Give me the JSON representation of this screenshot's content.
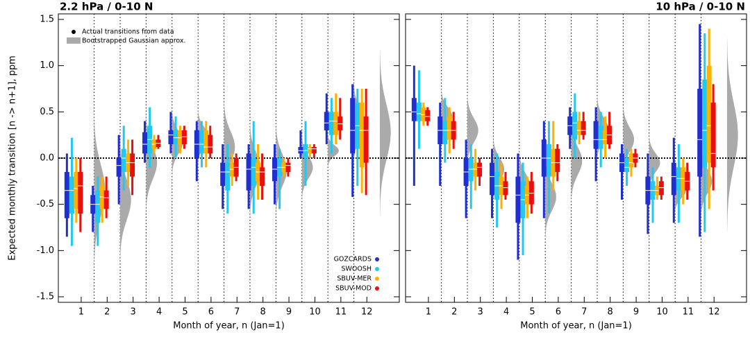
{
  "chart_data": [
    {
      "type": "box",
      "title": "2.2 hPa / 0-10 N",
      "xlabel": "Month of year, n (Jan=1)",
      "ylabel": "Expected monthly transition [n -> n+1], ppm",
      "x": [
        1,
        2,
        3,
        4,
        5,
        6,
        7,
        8,
        9,
        10,
        11,
        12
      ],
      "xlim": [
        0.12,
        13.25
      ],
      "xticks": [
        1,
        2,
        3,
        4,
        5,
        6,
        7,
        8,
        9,
        10,
        11,
        12
      ],
      "ylim": [
        -1.56,
        1.56
      ],
      "yticks": [
        {
          "value": -1.5,
          "label": "-1.5"
        },
        {
          "value": -1,
          "label": "-1.0"
        },
        -0.5,
        {
          "value": 0,
          "label": "0.0"
        },
        0.5,
        {
          "value": 1,
          "label": "1.0"
        },
        1.5
      ],
      "ytick_labels": true,
      "zero_line": true,
      "legend_notes": [
        "Actual transitions from data",
        "Bootstrapped Gaussian approx."
      ],
      "gaussian": {
        "color": "#aaaaaa",
        "mean": [
          -0.35,
          -0.45,
          -0.05,
          0.17,
          0.23,
          0.12,
          -0.12,
          -0.13,
          -0.1,
          0.08,
          0.38,
          0.28
        ],
        "sd": [
          0.28,
          0.22,
          0.18,
          0.12,
          0.1,
          0.17,
          0.17,
          0.17,
          0.12,
          0.06,
          0.15,
          0.3
        ]
      },
      "series": [
        {
          "name": "GOZCARDS",
          "color": "#1f2fd0",
          "low": [
            -0.85,
            -0.8,
            -0.5,
            -0.05,
            0.05,
            -0.25,
            -0.55,
            -0.55,
            -0.5,
            0.0,
            0.15,
            -0.42
          ],
          "q1": [
            -0.65,
            -0.6,
            -0.2,
            0.05,
            0.15,
            0.0,
            -0.3,
            -0.35,
            -0.25,
            0.05,
            0.3,
            0.05
          ],
          "median": [
            -0.35,
            -0.5,
            -0.08,
            0.15,
            0.25,
            0.15,
            -0.15,
            -0.12,
            -0.12,
            0.08,
            0.38,
            0.3
          ],
          "q3": [
            -0.15,
            -0.4,
            0.0,
            0.28,
            0.3,
            0.3,
            -0.05,
            0.05,
            0.0,
            0.12,
            0.5,
            0.65
          ],
          "high": [
            0.05,
            -0.3,
            0.25,
            0.4,
            0.5,
            0.4,
            0.15,
            0.15,
            0.15,
            0.3,
            0.7,
            0.8
          ]
        },
        {
          "name": "SWOOSH",
          "color": "#22c8f0",
          "low": [
            -0.95,
            -0.95,
            -0.35,
            -0.1,
            0.0,
            -0.1,
            -0.6,
            -0.6,
            -0.55,
            -0.3,
            0.05,
            -0.3
          ],
          "q1": [
            -0.6,
            -0.7,
            -0.15,
            0.05,
            0.15,
            0.05,
            -0.35,
            -0.3,
            -0.2,
            0.0,
            0.25,
            0.1
          ],
          "median": [
            -0.35,
            -0.5,
            0.0,
            0.2,
            0.22,
            0.15,
            -0.15,
            -0.1,
            -0.1,
            0.08,
            0.4,
            0.35
          ],
          "q3": [
            -0.2,
            -0.35,
            0.1,
            0.35,
            0.3,
            0.3,
            -0.05,
            0.0,
            0.0,
            0.15,
            0.5,
            0.6
          ],
          "high": [
            0.22,
            -0.2,
            0.35,
            0.55,
            0.45,
            0.4,
            0.15,
            0.4,
            0.1,
            0.4,
            0.65,
            0.75
          ]
        },
        {
          "name": "SBUV-MER",
          "color": "#ffb000",
          "low": [
            -0.7,
            -0.7,
            -0.3,
            0.05,
            0.05,
            -0.1,
            -0.3,
            -0.45,
            -0.2,
            0.0,
            0.15,
            -0.38
          ],
          "q1": [
            -0.55,
            -0.55,
            -0.15,
            0.1,
            0.15,
            0.05,
            -0.2,
            -0.25,
            -0.15,
            0.05,
            0.25,
            -0.1
          ],
          "median": [
            -0.33,
            -0.42,
            -0.05,
            0.15,
            0.22,
            0.12,
            -0.12,
            -0.15,
            -0.1,
            0.1,
            0.4,
            0.3
          ],
          "q3": [
            -0.15,
            -0.3,
            0.05,
            0.2,
            0.3,
            0.3,
            -0.05,
            -0.05,
            -0.05,
            0.12,
            0.5,
            0.6
          ],
          "high": [
            0.0,
            -0.2,
            0.2,
            0.25,
            0.35,
            0.4,
            0.05,
            0.15,
            0.0,
            0.15,
            0.7,
            0.75
          ]
        },
        {
          "name": "SBUV-MOD",
          "color": "#e8100c",
          "low": [
            -0.8,
            -0.65,
            -0.4,
            0.1,
            0.1,
            0.0,
            -0.25,
            -0.45,
            -0.2,
            0.0,
            0.2,
            -0.4
          ],
          "q1": [
            -0.6,
            -0.55,
            -0.2,
            0.12,
            0.15,
            0.05,
            -0.2,
            -0.3,
            -0.15,
            0.05,
            0.3,
            -0.05
          ],
          "median": [
            -0.3,
            -0.43,
            -0.05,
            0.16,
            0.23,
            0.12,
            -0.1,
            -0.15,
            -0.08,
            0.1,
            0.37,
            0.3
          ],
          "q3": [
            -0.15,
            -0.35,
            0.05,
            0.2,
            0.3,
            0.25,
            0.0,
            -0.1,
            -0.05,
            0.12,
            0.45,
            0.45
          ],
          "high": [
            0.0,
            -0.2,
            0.2,
            0.25,
            0.35,
            0.35,
            0.05,
            0.05,
            0.0,
            0.15,
            0.65,
            0.75
          ]
        }
      ]
    },
    {
      "type": "box",
      "title": "10 hPa / 0-10 N",
      "xlabel": "Month of year, n (Jan=1)",
      "x": [
        1,
        2,
        3,
        4,
        5,
        6,
        7,
        8,
        9,
        10,
        11,
        12
      ],
      "xlim": [
        0.12,
        13.25
      ],
      "xticks": [
        1,
        2,
        3,
        4,
        5,
        6,
        7,
        8,
        9,
        10,
        11,
        12
      ],
      "ylim": [
        -1.56,
        1.56
      ],
      "yticks": [
        -1.5,
        -1,
        -0.5,
        0,
        0.5,
        1,
        1.5
      ],
      "ytick_labels": false,
      "zero_line": true,
      "gaussian": {
        "color": "#aaaaaa",
        "mean": [
          0.45,
          0.3,
          -0.12,
          -0.3,
          -0.42,
          -0.03,
          0.32,
          0.2,
          -0.05,
          -0.35,
          -0.25,
          0.25
        ],
        "sd": [
          0.1,
          0.13,
          0.12,
          0.13,
          0.15,
          0.15,
          0.12,
          0.13,
          0.1,
          0.08,
          0.13,
          0.35
        ]
      },
      "series": [
        {
          "name": "GOZCARDS",
          "color": "#1f2fd0",
          "low": [
            -0.3,
            -0.3,
            -0.65,
            -0.65,
            -1.1,
            -0.65,
            0.1,
            -0.25,
            -0.45,
            -0.82,
            -0.7,
            -0.85
          ],
          "q1": [
            0.4,
            0.15,
            -0.3,
            -0.4,
            -0.7,
            -0.2,
            0.25,
            0.1,
            -0.15,
            -0.5,
            -0.4,
            -0.2
          ],
          "median": [
            0.5,
            0.3,
            -0.15,
            -0.2,
            -0.4,
            0.0,
            0.35,
            0.2,
            -0.05,
            -0.35,
            -0.2,
            0.2
          ],
          "q3": [
            0.65,
            0.45,
            0.0,
            -0.05,
            -0.2,
            0.2,
            0.45,
            0.4,
            0.05,
            -0.2,
            -0.05,
            0.75
          ],
          "high": [
            1.0,
            0.6,
            0.2,
            0.1,
            0.05,
            0.4,
            0.55,
            0.55,
            0.15,
            0.05,
            0.22,
            1.45
          ]
        },
        {
          "name": "SWOOSH",
          "color": "#22c8f0",
          "low": [
            0.1,
            -0.05,
            -0.55,
            -0.75,
            -1.05,
            -0.6,
            0.0,
            -0.1,
            -0.3,
            -0.7,
            -0.7,
            -0.8
          ],
          "q1": [
            0.4,
            0.15,
            -0.25,
            -0.45,
            -0.65,
            -0.2,
            0.2,
            0.1,
            -0.15,
            -0.45,
            -0.35,
            -0.1
          ],
          "median": [
            0.48,
            0.3,
            -0.12,
            -0.3,
            -0.45,
            0.0,
            0.38,
            0.2,
            -0.1,
            -0.35,
            -0.22,
            0.3
          ],
          "q3": [
            0.6,
            0.4,
            0.0,
            -0.15,
            -0.25,
            0.15,
            0.5,
            0.35,
            0.0,
            -0.25,
            -0.1,
            0.85
          ],
          "high": [
            0.95,
            0.65,
            0.15,
            0.05,
            -0.05,
            0.4,
            0.7,
            0.5,
            0.1,
            -0.1,
            0.15,
            1.35
          ]
        },
        {
          "name": "SBUV-MER",
          "color": "#ffb000",
          "low": [
            0.35,
            0.05,
            -0.35,
            -0.55,
            -0.65,
            -0.35,
            0.15,
            0.0,
            -0.2,
            -0.45,
            -0.5,
            -0.55
          ],
          "q1": [
            0.4,
            0.2,
            -0.2,
            -0.4,
            -0.5,
            -0.2,
            0.25,
            0.15,
            -0.1,
            -0.4,
            -0.35,
            -0.05
          ],
          "median": [
            0.47,
            0.3,
            -0.12,
            -0.3,
            -0.4,
            -0.05,
            0.3,
            0.2,
            -0.05,
            -0.35,
            -0.22,
            0.35
          ],
          "q3": [
            0.55,
            0.45,
            -0.05,
            -0.2,
            -0.3,
            0.1,
            0.4,
            0.3,
            0.05,
            -0.3,
            -0.1,
            1.0
          ],
          "high": [
            0.6,
            0.55,
            0.1,
            -0.05,
            -0.2,
            0.4,
            0.5,
            0.45,
            0.1,
            -0.2,
            0.0,
            1.4
          ]
        },
        {
          "name": "SBUV-MOD",
          "color": "#e8100c",
          "low": [
            0.35,
            0.1,
            -0.3,
            -0.45,
            -0.6,
            -0.25,
            0.2,
            0.1,
            -0.1,
            -0.45,
            -0.45,
            -0.35
          ],
          "q1": [
            0.4,
            0.2,
            -0.2,
            -0.4,
            -0.5,
            -0.15,
            0.25,
            0.15,
            -0.05,
            -0.4,
            -0.35,
            -0.1
          ],
          "median": [
            0.45,
            0.3,
            -0.1,
            -0.32,
            -0.38,
            -0.05,
            0.3,
            0.25,
            0.0,
            -0.32,
            -0.25,
            0.05
          ],
          "q3": [
            0.52,
            0.4,
            -0.05,
            -0.25,
            -0.25,
            0.1,
            0.4,
            0.35,
            0.05,
            -0.25,
            -0.15,
            0.6
          ],
          "high": [
            0.55,
            0.5,
            0.0,
            -0.15,
            -0.15,
            0.15,
            0.5,
            0.5,
            0.1,
            -0.2,
            -0.05,
            0.8
          ]
        }
      ]
    }
  ]
}
